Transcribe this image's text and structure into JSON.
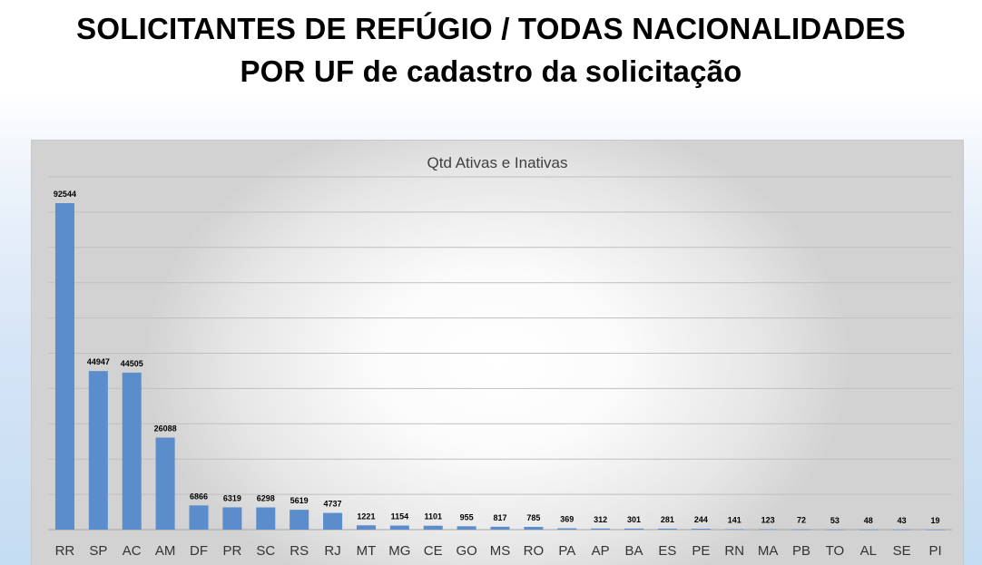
{
  "header": {
    "title_line_1": "SOLICITANTES DE REFÚGIO / TODAS NACIONALIDADES",
    "title_line_2": "POR UF de cadastro da solicitação"
  },
  "colors": {
    "bar": "#5b8ccb",
    "gridline": "#bfbfbf",
    "label": "#000000",
    "axis_text": "#333333"
  },
  "chart_data": {
    "type": "bar",
    "title": "Qtd Ativas e Inativas",
    "xlabel": "",
    "ylabel": "",
    "ylim": [
      0,
      100000
    ],
    "grid": true,
    "legend": "none",
    "categories": [
      "RR",
      "SP",
      "AC",
      "AM",
      "DF",
      "PR",
      "SC",
      "RS",
      "RJ",
      "MT",
      "MG",
      "CE",
      "GO",
      "MS",
      "RO",
      "PA",
      "AP",
      "BA",
      "ES",
      "PE",
      "RN",
      "MA",
      "PB",
      "TO",
      "AL",
      "SE",
      "PI"
    ],
    "values": [
      92544,
      44947,
      44505,
      26088,
      6866,
      6319,
      6298,
      5619,
      4737,
      1221,
      1154,
      1101,
      955,
      817,
      785,
      369,
      312,
      301,
      281,
      244,
      141,
      123,
      72,
      53,
      48,
      43,
      19
    ]
  }
}
